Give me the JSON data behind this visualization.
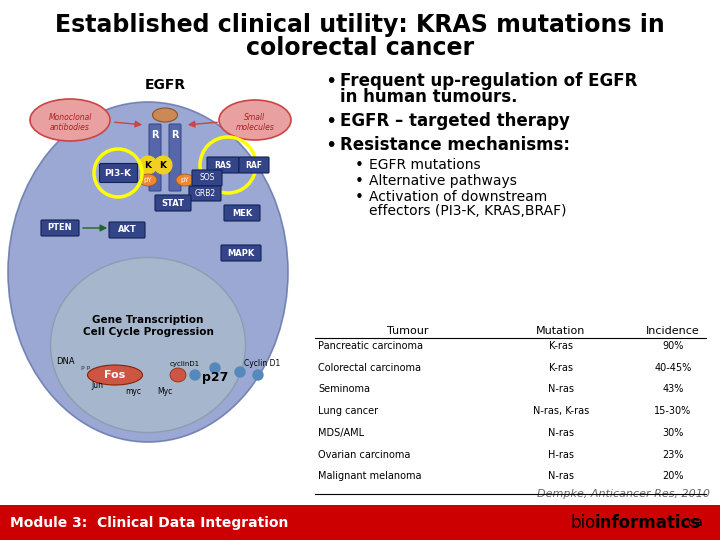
{
  "title_line1": "Established clinical utility: KRAS mutations in",
  "title_line2": "colorectal cancer",
  "title_fontsize": 17,
  "egfr_label": "EGFR",
  "bullet_points": [
    "Frequent up-regulation of EGFR\nin human tumours.",
    "EGFR – targeted therapy",
    "Resistance mechanisms:"
  ],
  "sub_bullets": [
    "EGFR mutations",
    "Alternative pathways",
    "Activation of downstream\neffectors (PI3-K, KRAS,BRAF)"
  ],
  "footer_text_left": "Module 3:  Clinical Data Integration",
  "footer_citation": "Dempke, Anticancer Res, 2010",
  "footer_bg": "#cc0000",
  "footer_text_color": "#ffffff",
  "bg_color": "#ffffff",
  "bullet_fontsize": 12,
  "sub_bullet_fontsize": 10,
  "footer_fontsize": 10,
  "table_headers": [
    "Tumour",
    "Mutation",
    "Incidence"
  ],
  "table_rows": [
    [
      "Pancreatic carcinoma",
      "K-ras",
      "90%"
    ],
    [
      "Colorectal carcinoma",
      "K-ras",
      "40-45%"
    ],
    [
      "Seminoma",
      "N-ras",
      "43%"
    ],
    [
      "Lung cancer",
      "N-ras, K-ras",
      "15-30%"
    ],
    [
      "MDS/AML",
      "N-ras",
      "30%"
    ],
    [
      "Ovarian carcinoma",
      "H-ras",
      "23%"
    ],
    [
      "Malignant melanoma",
      "N-ras",
      "20%"
    ]
  ],
  "cell_color": "#8899cc",
  "nucleus_color": "#aaaaaa",
  "box_color": "#334488",
  "pi3k_circle_color": "#ffff00",
  "ras_raf_circle_color": "#ffff00",
  "membrane_color": "#cc7766",
  "receptor_color": "#6677aa"
}
